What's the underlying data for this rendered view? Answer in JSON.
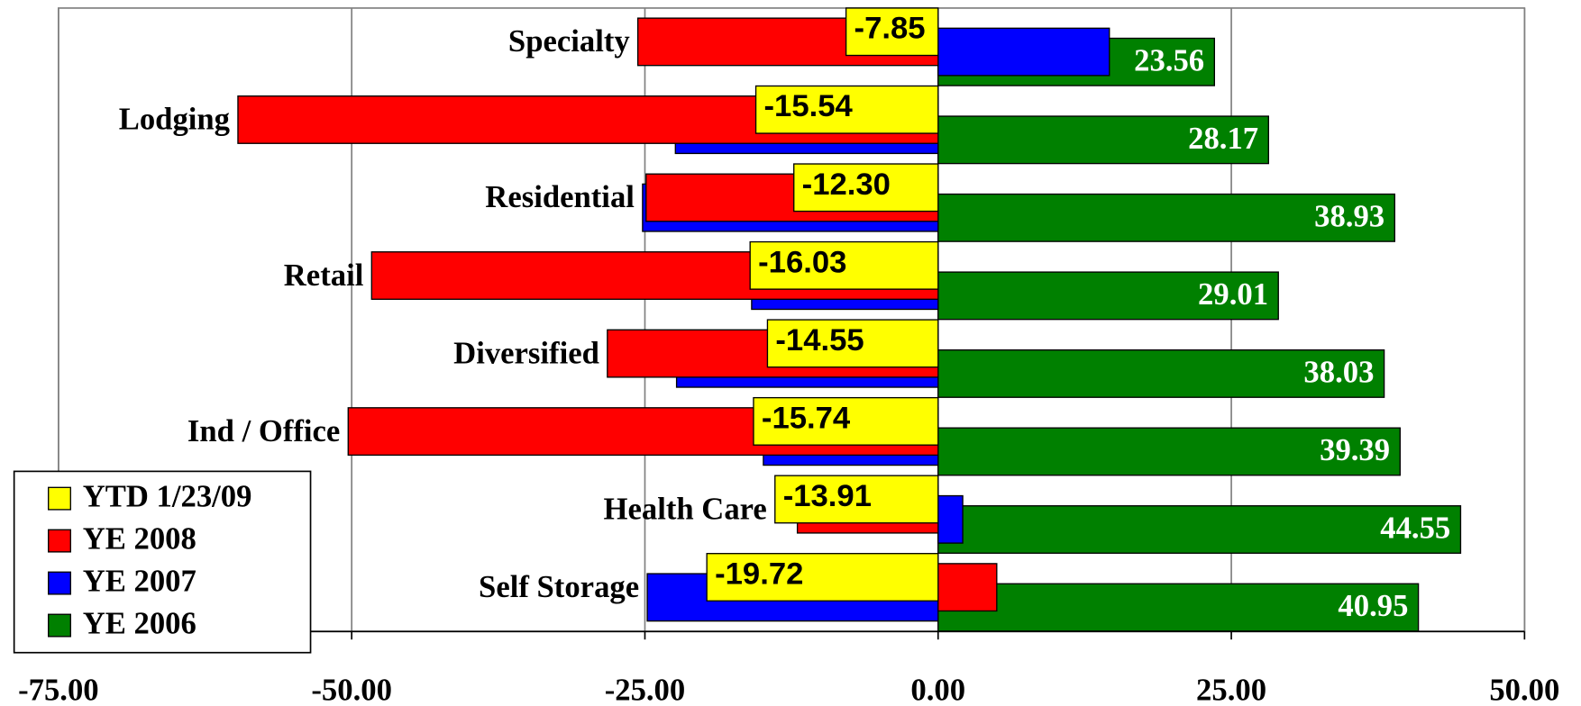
{
  "chart_data": {
    "type": "bar",
    "orientation": "horizontal",
    "categories": [
      "Specialty",
      "Lodging",
      "Residential",
      "Retail",
      "Diversified",
      "Ind / Office",
      "Health Care",
      "Self Storage"
    ],
    "series": [
      {
        "name": "YTD 1/23/09",
        "color": "#ffff00",
        "values": [
          -7.85,
          -15.54,
          -12.3,
          -16.03,
          -14.55,
          -15.74,
          -13.91,
          -19.72
        ],
        "value_labels": [
          "-7.85",
          "-15.54",
          "-12.30",
          "-16.03",
          "-14.55",
          "-15.74",
          "-13.91",
          "-19.72"
        ]
      },
      {
        "name": "YE 2008",
        "color": "#ff0000",
        "values": [
          -25.6,
          -59.7,
          -24.9,
          -48.3,
          -28.2,
          -50.3,
          -12.0,
          5.0
        ]
      },
      {
        "name": "YE 2007",
        "color": "#0000ff",
        "values": [
          14.6,
          -22.4,
          -25.2,
          -15.9,
          -22.3,
          -14.9,
          2.1,
          -24.8
        ]
      },
      {
        "name": "YE 2006",
        "color": "#008000",
        "values": [
          23.56,
          28.17,
          38.93,
          29.01,
          38.03,
          39.39,
          44.55,
          40.95
        ]
      }
    ],
    "xlim": [
      -75,
      50
    ],
    "xticks": [
      {
        "value": -75,
        "label": "-75.00"
      },
      {
        "value": -50,
        "label": "-50.00"
      },
      {
        "value": -25,
        "label": "-25.00"
      },
      {
        "value": 0,
        "label": "0.00"
      },
      {
        "value": 25,
        "label": "25.00"
      },
      {
        "value": 50,
        "label": "50.00"
      }
    ],
    "grid": true,
    "legend": "lower left"
  }
}
